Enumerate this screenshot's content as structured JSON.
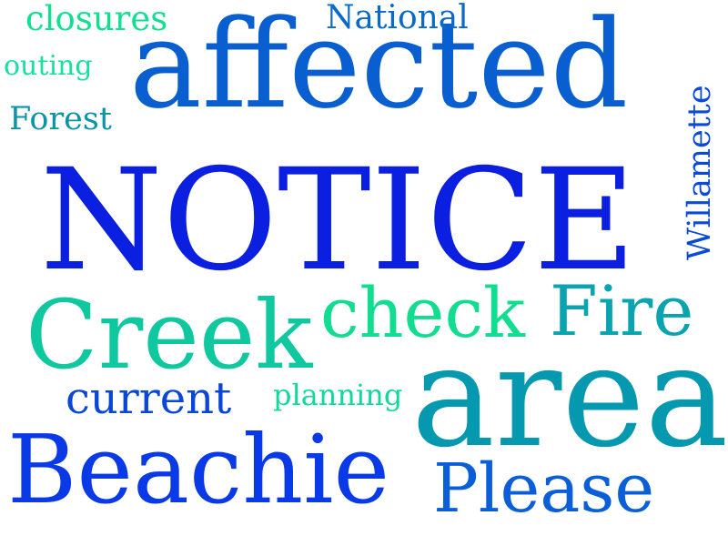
{
  "words": [
    {
      "id": "notice",
      "text": "NOTICE",
      "color": "#0a1fe0"
    },
    {
      "id": "affected",
      "text": "affected",
      "color": "#0a5fd0"
    },
    {
      "id": "area",
      "text": "area",
      "color": "#0599b0"
    },
    {
      "id": "creek",
      "text": "Creek",
      "color": "#10c8a0"
    },
    {
      "id": "beachie",
      "text": "Beachie",
      "color": "#0a3ae8"
    },
    {
      "id": "check",
      "text": "check",
      "color": "#10dd90"
    },
    {
      "id": "fire",
      "text": "Fire",
      "color": "#0aa3b0"
    },
    {
      "id": "please",
      "text": "Please",
      "color": "#0a5fd8"
    },
    {
      "id": "current",
      "text": "current",
      "color": "#0a46d8"
    },
    {
      "id": "planning",
      "text": "planning",
      "color": "#12d8a0"
    },
    {
      "id": "willamette",
      "text": "Willamette",
      "color": "#0a4ad8"
    },
    {
      "id": "national",
      "text": "National",
      "color": "#0a6ac8"
    },
    {
      "id": "closures",
      "text": "closures",
      "color": "#10e090"
    },
    {
      "id": "outing",
      "text": "outing",
      "color": "#18e0a0"
    },
    {
      "id": "forest",
      "text": "Forest",
      "color": "#0b93a8"
    }
  ]
}
